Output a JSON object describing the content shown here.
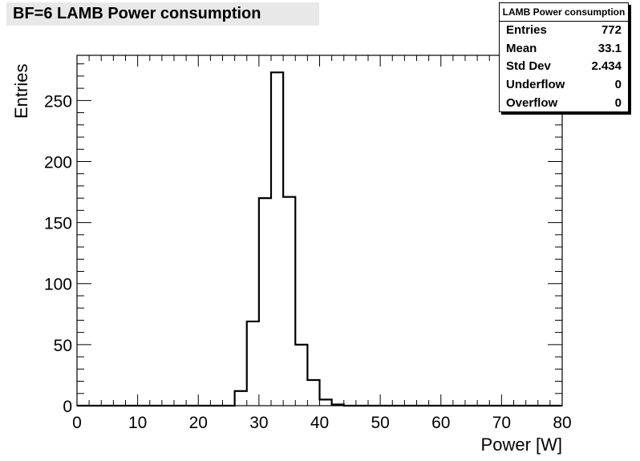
{
  "stats": {
    "header": "LAMB Power consumption",
    "rows": [
      {
        "label": "Entries",
        "value": "772"
      },
      {
        "label": "Mean",
        "value": "33.1"
      },
      {
        "label": "Std Dev",
        "value": "2.434"
      },
      {
        "label": "Underflow",
        "value": "0"
      },
      {
        "label": "Overflow",
        "value": "0"
      }
    ]
  },
  "chart_data": {
    "type": "bar",
    "title": "BF=6 LAMB Power consumption",
    "xlabel": "Power [W]",
    "ylabel": "Entries",
    "xlim": [
      0,
      80
    ],
    "ylim": [
      0,
      287
    ],
    "bin_width": 2,
    "bin_edges": [
      26,
      28,
      30,
      32,
      34,
      36,
      38,
      40,
      42,
      44
    ],
    "values": [
      12,
      69,
      170,
      273,
      171,
      50,
      21,
      5,
      1
    ],
    "x_ticks": [
      0,
      10,
      20,
      30,
      40,
      50,
      60,
      70,
      80
    ],
    "y_ticks": [
      0,
      50,
      100,
      150,
      200,
      250
    ],
    "grid": false
  }
}
